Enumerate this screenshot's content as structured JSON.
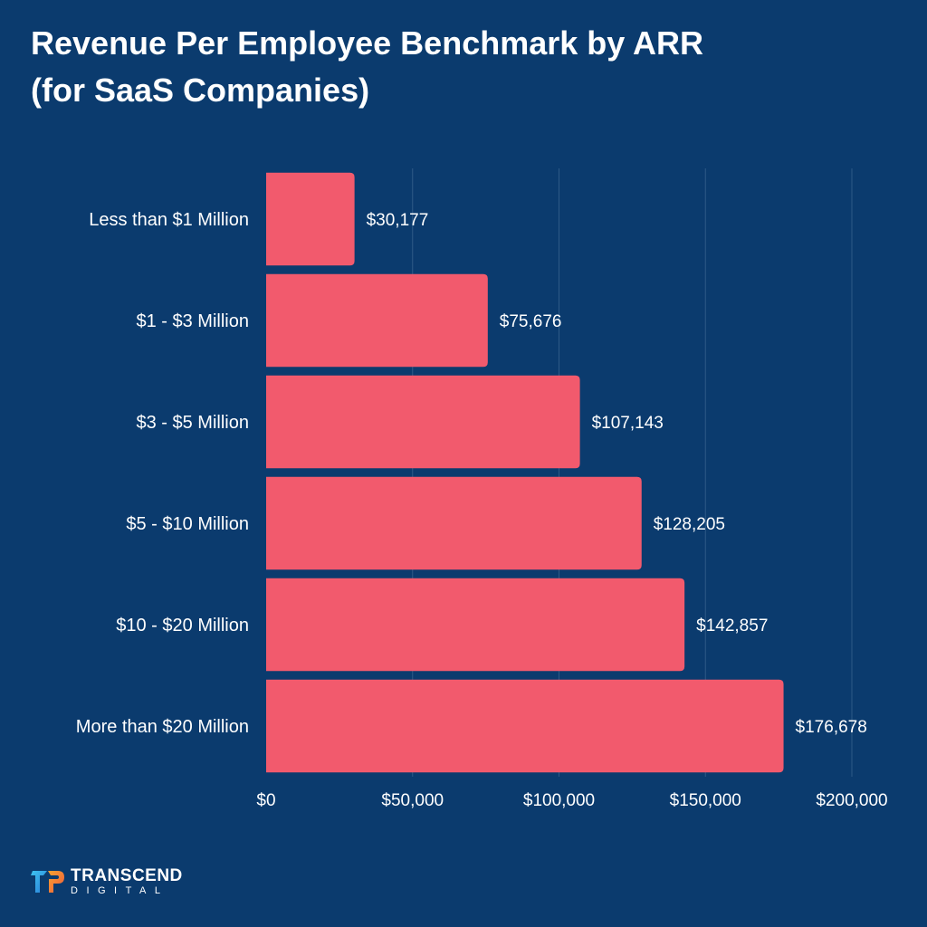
{
  "title": {
    "line1": "Revenue Per Employee Benchmark by ARR",
    "line2": "(for SaaS Companies)"
  },
  "chart_data": {
    "type": "bar",
    "orientation": "horizontal",
    "title": "Revenue Per Employee Benchmark by ARR (for SaaS Companies)",
    "categories": [
      "Less than $1 Million",
      "$1 - $3 Million",
      "$3 - $5 Million",
      "$5 - $10 Million",
      "$10 - $20 Million",
      "More than $20 Million"
    ],
    "values": [
      30177,
      75676,
      107143,
      128205,
      142857,
      176678
    ],
    "value_labels": [
      "$30,177",
      "$75,676",
      "$107,143",
      "$128,205",
      "$142,857",
      "$176,678"
    ],
    "x_ticks": [
      0,
      50000,
      100000,
      150000,
      200000
    ],
    "x_tick_labels": [
      "$0",
      "$50,000",
      "$100,000",
      "$150,000",
      "$200,000"
    ],
    "xlim": [
      0,
      200000
    ],
    "grid": "vertical",
    "xlabel": "",
    "ylabel": "",
    "colors": {
      "bar": "#f25a6d",
      "background": "#0b3b6e",
      "grid": "#2e5a86",
      "text": "#ffffff"
    }
  },
  "logo": {
    "line1": "TRANSCEND",
    "line2": "DIGITAL"
  }
}
